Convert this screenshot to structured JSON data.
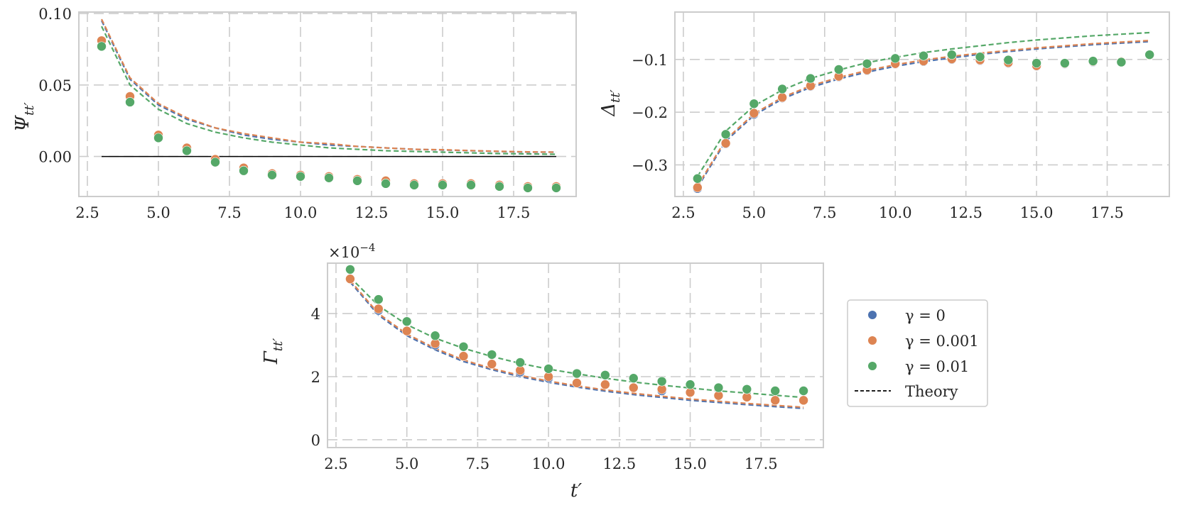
{
  "colors": {
    "gamma_0": "#4c72b0",
    "gamma_0_001": "#dd8452",
    "gamma_0_01": "#55a868",
    "grid": "#cccccc",
    "frame": "#cccccc",
    "zero_line": "#000000",
    "text": "#262626"
  },
  "legend": {
    "items": [
      {
        "label": "γ = 0",
        "marker": "dot",
        "color": "#4c72b0"
      },
      {
        "label": "γ = 0.001",
        "marker": "dot",
        "color": "#dd8452"
      },
      {
        "label": "γ = 0.01",
        "marker": "dot",
        "color": "#55a868"
      },
      {
        "label": "Theory",
        "marker": "dashed-line",
        "color": "#000000"
      }
    ]
  },
  "chart_data": [
    {
      "type": "scatter",
      "ylabel": "Ψtt′",
      "xlabel": "",
      "xlim": [
        2.2,
        19.7
      ],
      "ylim": [
        -0.028,
        0.101
      ],
      "xticks": [
        "2.5",
        "5.0",
        "7.5",
        "10.0",
        "12.5",
        "15.0",
        "17.5"
      ],
      "xtick_values": [
        2.5,
        5.0,
        7.5,
        10.0,
        12.5,
        15.0,
        17.5
      ],
      "yticks": [
        "0.00",
        "0.05",
        "0.10"
      ],
      "ytick_values": [
        0.0,
        0.05,
        0.1
      ],
      "grid": true,
      "reference_line": {
        "y": 0.0,
        "x_start": 3,
        "x_end": 19
      },
      "x": [
        3,
        4,
        5,
        6,
        7,
        8,
        9,
        10,
        11,
        12,
        13,
        14,
        15,
        16,
        17,
        18,
        19
      ],
      "series": [
        {
          "name": "γ = 0",
          "kind": "points",
          "color": "#4c72b0",
          "values": [
            0.081,
            0.042,
            0.015,
            0.006,
            -0.002,
            -0.008,
            -0.012,
            -0.013,
            -0.014,
            -0.016,
            -0.017,
            -0.019,
            -0.019,
            -0.019,
            -0.02,
            -0.021,
            -0.021
          ]
        },
        {
          "name": "γ = 0.001",
          "kind": "points",
          "color": "#dd8452",
          "values": [
            0.081,
            0.042,
            0.015,
            0.006,
            -0.002,
            -0.008,
            -0.012,
            -0.013,
            -0.014,
            -0.016,
            -0.017,
            -0.019,
            -0.019,
            -0.019,
            -0.02,
            -0.021,
            -0.021
          ]
        },
        {
          "name": "γ = 0.01",
          "kind": "points",
          "color": "#55a868",
          "values": [
            0.077,
            0.038,
            0.013,
            0.004,
            -0.004,
            -0.01,
            -0.013,
            -0.014,
            -0.015,
            -0.017,
            -0.019,
            -0.02,
            -0.02,
            -0.02,
            -0.021,
            -0.022,
            -0.022
          ]
        },
        {
          "name": "γ = 0",
          "kind": "theory",
          "color": "#4c72b0",
          "values": [
            0.095,
            0.054,
            0.036,
            0.026,
            0.02,
            0.015,
            0.012,
            0.01,
            0.008,
            0.007,
            0.006,
            0.005,
            0.0045,
            0.004,
            0.0035,
            0.003,
            0.003
          ]
        },
        {
          "name": "γ = 0.001",
          "kind": "theory",
          "color": "#dd8452",
          "values": [
            0.096,
            0.055,
            0.037,
            0.027,
            0.02,
            0.016,
            0.013,
            0.01,
            0.009,
            0.007,
            0.006,
            0.005,
            0.0047,
            0.0041,
            0.0036,
            0.0032,
            0.003
          ]
        },
        {
          "name": "γ = 0.01",
          "kind": "theory",
          "color": "#55a868",
          "values": [
            0.091,
            0.05,
            0.033,
            0.023,
            0.017,
            0.013,
            0.01,
            0.008,
            0.006,
            0.005,
            0.004,
            0.0035,
            0.003,
            0.0025,
            0.002,
            0.0018,
            0.0015
          ]
        }
      ]
    },
    {
      "type": "scatter",
      "ylabel": "Δtt′",
      "xlabel": "",
      "xlim": [
        2.2,
        19.7
      ],
      "ylim": [
        -0.36,
        -0.01
      ],
      "xticks": [
        "2.5",
        "5.0",
        "7.5",
        "10.0",
        "12.5",
        "15.0",
        "17.5"
      ],
      "xtick_values": [
        2.5,
        5.0,
        7.5,
        10.0,
        12.5,
        15.0,
        17.5
      ],
      "yticks": [
        "−0.3",
        "−0.2",
        "−0.1"
      ],
      "ytick_values": [
        -0.3,
        -0.2,
        -0.1
      ],
      "grid": true,
      "x": [
        3,
        4,
        5,
        6,
        7,
        8,
        9,
        10,
        11,
        12,
        13,
        14,
        15,
        16,
        17,
        18,
        19
      ],
      "series": [
        {
          "name": "γ = 0",
          "kind": "points",
          "color": "#4c72b0",
          "values": [
            -0.345,
            -0.26,
            -0.204,
            -0.173,
            -0.151,
            -0.133,
            -0.121,
            -0.109,
            -0.104,
            -0.1,
            -0.102,
            -0.107,
            -0.113,
            -0.109,
            -0.105,
            -0.105,
            -0.092
          ]
        },
        {
          "name": "γ = 0.001",
          "kind": "points",
          "color": "#dd8452",
          "values": [
            -0.343,
            -0.259,
            -0.202,
            -0.172,
            -0.15,
            -0.132,
            -0.12,
            -0.108,
            -0.103,
            -0.099,
            -0.101,
            -0.106,
            -0.112,
            -0.108,
            -0.104,
            -0.104,
            -0.092
          ]
        },
        {
          "name": "γ = 0.01",
          "kind": "points",
          "color": "#55a868",
          "values": [
            -0.326,
            -0.242,
            -0.184,
            -0.156,
            -0.136,
            -0.119,
            -0.108,
            -0.098,
            -0.093,
            -0.091,
            -0.095,
            -0.101,
            -0.107,
            -0.107,
            -0.103,
            -0.105,
            -0.091
          ]
        },
        {
          "name": "γ = 0",
          "kind": "theory",
          "color": "#4c72b0",
          "values": [
            -0.343,
            -0.255,
            -0.206,
            -0.175,
            -0.153,
            -0.137,
            -0.124,
            -0.113,
            -0.104,
            -0.097,
            -0.09,
            -0.085,
            -0.08,
            -0.076,
            -0.072,
            -0.069,
            -0.066
          ]
        },
        {
          "name": "γ = 0.001",
          "kind": "theory",
          "color": "#dd8452",
          "values": [
            -0.34,
            -0.252,
            -0.203,
            -0.172,
            -0.15,
            -0.134,
            -0.121,
            -0.11,
            -0.101,
            -0.094,
            -0.088,
            -0.083,
            -0.078,
            -0.074,
            -0.07,
            -0.067,
            -0.064
          ]
        },
        {
          "name": "γ = 0.01",
          "kind": "theory",
          "color": "#55a868",
          "values": [
            -0.322,
            -0.236,
            -0.188,
            -0.158,
            -0.136,
            -0.12,
            -0.106,
            -0.096,
            -0.087,
            -0.08,
            -0.074,
            -0.068,
            -0.063,
            -0.059,
            -0.055,
            -0.052,
            -0.049
          ]
        }
      ]
    },
    {
      "type": "scatter",
      "ylabel": "Γtt′",
      "xlabel": "t′",
      "multiplier": "×10⁻⁴",
      "xlim": [
        2.2,
        19.7
      ],
      "ylim": [
        -0.25,
        5.6
      ],
      "xticks": [
        "2.5",
        "5.0",
        "7.5",
        "10.0",
        "12.5",
        "15.0",
        "17.5"
      ],
      "xtick_values": [
        2.5,
        5.0,
        7.5,
        10.0,
        12.5,
        15.0,
        17.5
      ],
      "yticks": [
        "0",
        "2",
        "4"
      ],
      "ytick_values": [
        0,
        2,
        4
      ],
      "grid": true,
      "x": [
        3,
        4,
        5,
        6,
        7,
        8,
        9,
        10,
        11,
        12,
        13,
        14,
        15,
        16,
        17,
        18,
        19
      ],
      "series": [
        {
          "name": "γ = 0",
          "kind": "points",
          "color": "#4c72b0",
          "values": [
            5.1,
            4.1,
            3.45,
            3.0,
            2.65,
            2.4,
            2.15,
            1.95,
            1.8,
            1.75,
            1.65,
            1.55,
            1.5,
            1.4,
            1.35,
            1.25,
            1.25
          ]
        },
        {
          "name": "γ = 0.001",
          "kind": "points",
          "color": "#dd8452",
          "values": [
            5.1,
            4.15,
            3.45,
            3.05,
            2.65,
            2.4,
            2.2,
            2.0,
            1.8,
            1.75,
            1.65,
            1.6,
            1.5,
            1.4,
            1.35,
            1.25,
            1.25
          ]
        },
        {
          "name": "γ = 0.01",
          "kind": "points",
          "color": "#55a868",
          "values": [
            5.4,
            4.45,
            3.75,
            3.3,
            2.95,
            2.7,
            2.45,
            2.25,
            2.1,
            2.05,
            1.95,
            1.85,
            1.75,
            1.65,
            1.6,
            1.55,
            1.55
          ]
        },
        {
          "name": "γ = 0",
          "kind": "theory",
          "color": "#4c72b0",
          "values": [
            5.0,
            3.95,
            3.3,
            2.85,
            2.48,
            2.22,
            2.0,
            1.82,
            1.67,
            1.54,
            1.43,
            1.34,
            1.25,
            1.18,
            1.11,
            1.05,
            0.99
          ]
        },
        {
          "name": "γ = 0.001",
          "kind": "theory",
          "color": "#dd8452",
          "values": [
            5.05,
            4.0,
            3.35,
            2.9,
            2.53,
            2.26,
            2.04,
            1.86,
            1.71,
            1.58,
            1.47,
            1.38,
            1.29,
            1.22,
            1.15,
            1.09,
            1.03
          ]
        },
        {
          "name": "γ = 0.01",
          "kind": "theory",
          "color": "#55a868",
          "values": [
            5.15,
            4.25,
            3.65,
            3.22,
            2.9,
            2.64,
            2.42,
            2.24,
            2.09,
            1.95,
            1.83,
            1.73,
            1.64,
            1.55,
            1.48,
            1.41,
            1.34
          ]
        }
      ]
    }
  ]
}
